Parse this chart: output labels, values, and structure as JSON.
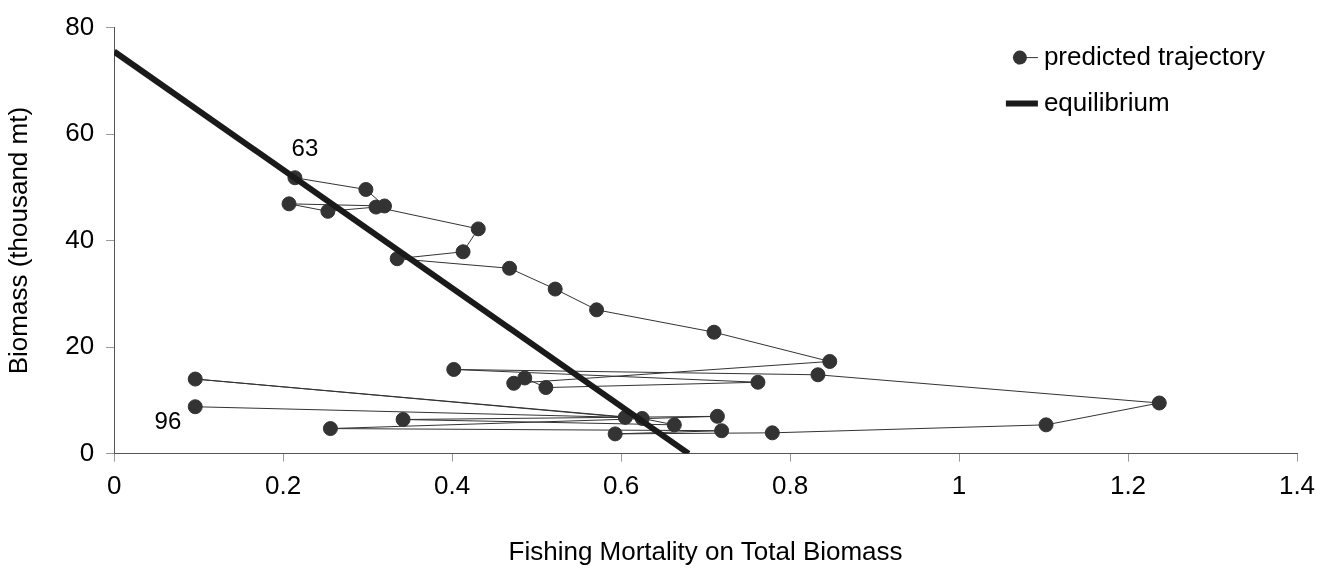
{
  "chart_data": {
    "type": "scatter",
    "xlabel": "Fishing Mortality on Total Biomass",
    "ylabel": "Biomass (thousand mt)",
    "xlim": [
      0,
      1.4
    ],
    "xticks": [
      0,
      0.2,
      0.4,
      0.6,
      0.8,
      1,
      1.2,
      1.4
    ],
    "ylim": [
      0,
      80
    ],
    "yticks": [
      0,
      20,
      40,
      60,
      80
    ],
    "grid": false,
    "legend": "top right",
    "series": [
      {
        "name": "predicted trajectory",
        "type": "line",
        "marker": "circle",
        "line_style": "solid",
        "color": "#333333",
        "x": [
          0.214,
          0.298,
          0.32,
          0.207,
          0.253,
          0.31,
          0.431,
          0.413,
          0.335,
          0.468,
          0.522,
          0.571,
          0.71,
          0.847,
          0.473,
          0.486,
          0.511,
          0.762,
          0.402,
          0.833,
          1.237,
          1.103,
          0.779,
          0.593,
          0.719,
          0.256,
          0.714,
          0.342,
          0.663,
          0.625,
          0.096,
          0.605,
          0.096
        ],
        "values": [
          51.8,
          49.6,
          46.5,
          46.9,
          45.5,
          46.3,
          42.2,
          37.9,
          36.6,
          34.8,
          30.9,
          27.0,
          22.8,
          17.3,
          13.2,
          14.2,
          12.4,
          13.4,
          15.8,
          14.8,
          9.5,
          5.4,
          3.9,
          3.7,
          4.3,
          4.7,
          7.0,
          6.4,
          5.4,
          6.6,
          14.0,
          6.8,
          8.8
        ]
      },
      {
        "name": "equilibrium",
        "type": "line",
        "marker": "none",
        "line_style": "solid",
        "color": "#1a1a1a",
        "x": [
          0,
          0.68
        ],
        "values": [
          75.5,
          0
        ]
      }
    ],
    "annotations": [
      {
        "text": "63",
        "x": 0.214,
        "y": 51.8
      },
      {
        "text": "96",
        "x": 0.096,
        "y": 8.8
      }
    ]
  }
}
